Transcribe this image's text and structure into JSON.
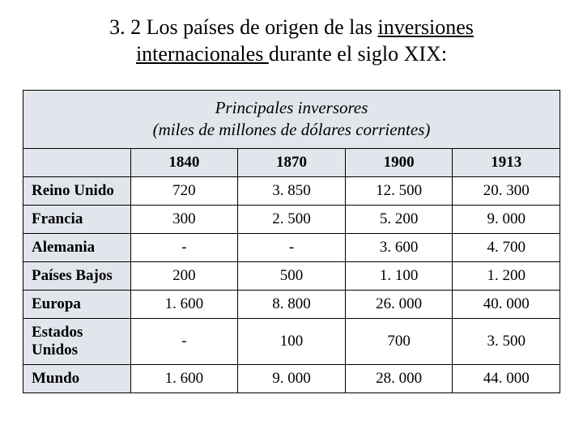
{
  "title": {
    "pre": "3. 2 Los países de origen de las ",
    "underlined1": "inversiones",
    "underlined2": "internacionales ",
    "post": "durante el siglo XIX:"
  },
  "table": {
    "caption_line1": "Principales inversores",
    "caption_line2": "(miles de millones de dólares corrientes)",
    "header_bg": "#e2e6ec",
    "border_color": "#000000",
    "font_family": "Times New Roman",
    "years": [
      "1840",
      "1870",
      "1900",
      "1913"
    ],
    "rows": [
      {
        "label": "Reino Unido",
        "values": [
          "720",
          "3. 850",
          "12. 500",
          "20. 300"
        ]
      },
      {
        "label": "Francia",
        "values": [
          "300",
          "2. 500",
          "5. 200",
          "9. 000"
        ]
      },
      {
        "label": "Alemania",
        "values": [
          "-",
          "-",
          "3. 600",
          "4. 700"
        ]
      },
      {
        "label": "Países Bajos",
        "values": [
          "200",
          "500",
          "1. 100",
          "1. 200"
        ]
      },
      {
        "label": "Europa",
        "values": [
          "1. 600",
          "8. 800",
          "26. 000",
          "40. 000"
        ]
      },
      {
        "label": "Estados Unidos",
        "values": [
          "-",
          "100",
          "700",
          "3. 500"
        ]
      },
      {
        "label": "Mundo",
        "values": [
          "1. 600",
          "9. 000",
          "28. 000",
          "44. 000"
        ]
      }
    ]
  }
}
